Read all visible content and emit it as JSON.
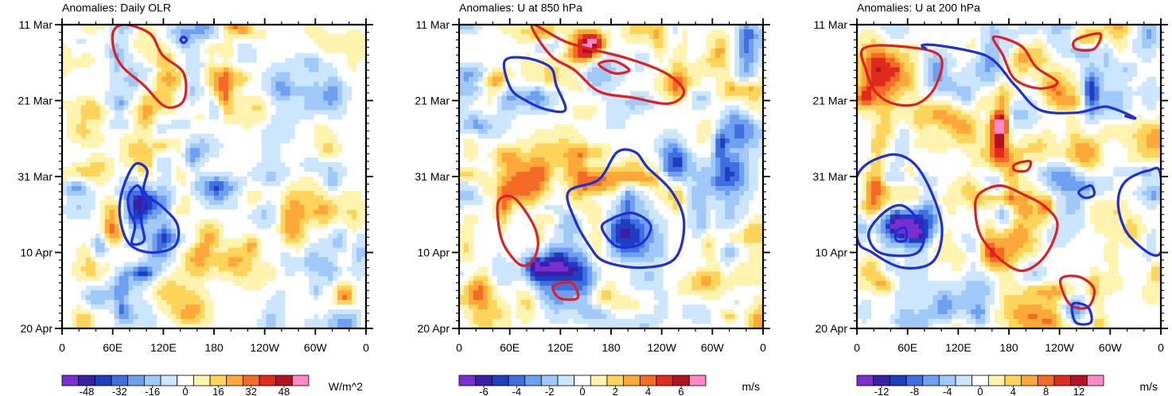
{
  "chart_data": [
    {
      "type": "heatmap",
      "title": "Anomalies: Daily OLR",
      "x_tick_labels": [
        "0",
        "60E",
        "120E",
        "180",
        "120W",
        "60W",
        "0"
      ],
      "x_range_deg_east": [
        0,
        360
      ],
      "y_tick_labels": [
        "11 Mar",
        "21 Mar",
        "31 Mar",
        "10 Apr",
        "20 Apr"
      ],
      "colorbar": {
        "unit": "W/m^2",
        "labels": [
          "-48",
          "-32",
          "-16",
          "0",
          "16",
          "32",
          "48"
        ],
        "levels": [
          -56,
          -48,
          -40,
          -32,
          -24,
          -16,
          -8,
          0,
          8,
          16,
          24,
          32,
          40,
          48,
          56
        ],
        "colors": [
          "#7b2fd0",
          "#3a1fa8",
          "#1f3fc0",
          "#3f6fe0",
          "#6fa0f0",
          "#a0c8f8",
          "#cce6ff",
          "#ffffff",
          "#fff3b0",
          "#ffd45a",
          "#ffa83a",
          "#f56a25",
          "#e02a1f",
          "#b5121f",
          "#ff88c8"
        ]
      },
      "contours": [
        {
          "color": "blue",
          "label": "negative anomaly region",
          "lon_center": 90,
          "day_center": 29
        },
        {
          "color": "red",
          "label": "positive anomaly region",
          "lon_center": 100,
          "day_center": 7
        }
      ]
    },
    {
      "type": "heatmap",
      "title": "Anomalies: U at 850 hPa",
      "x_tick_labels": [
        "0",
        "60E",
        "120E",
        "180",
        "120W",
        "60W",
        "0"
      ],
      "x_range_deg_east": [
        0,
        360
      ],
      "y_tick_labels": [
        "11 Mar",
        "21 Mar",
        "31 Mar",
        "10 Apr",
        "20 Apr"
      ],
      "colorbar": {
        "unit": "m/s",
        "labels": [
          "-6",
          "-4",
          "-2",
          "0",
          "2",
          "4",
          "6"
        ],
        "levels": [
          -7,
          -6,
          -5,
          -4,
          -3,
          -2,
          -1,
          0,
          1,
          2,
          3,
          4,
          5,
          6,
          7
        ],
        "colors": [
          "#7b2fd0",
          "#3a1fa8",
          "#1f3fc0",
          "#3f6fe0",
          "#6fa0f0",
          "#a0c8f8",
          "#cce6ff",
          "#ffffff",
          "#fff3b0",
          "#ffd45a",
          "#ffa83a",
          "#f56a25",
          "#e02a1f",
          "#b5121f",
          "#ff88c8"
        ]
      },
      "contours": [
        {
          "color": "blue",
          "label": "easterly anomaly region",
          "lon_center": 190,
          "day_center": 27
        },
        {
          "color": "red",
          "label": "westerly anomaly region",
          "lon_center": 170,
          "day_center": 6
        }
      ]
    },
    {
      "type": "heatmap",
      "title": "Anomalies: U at 200 hPa",
      "x_tick_labels": [
        "0",
        "60E",
        "120E",
        "180",
        "120W",
        "60W",
        "0"
      ],
      "x_range_deg_east": [
        0,
        360
      ],
      "y_tick_labels": [
        "11 Mar",
        "21 Mar",
        "31 Mar",
        "10 Apr",
        "20 Apr"
      ],
      "colorbar": {
        "unit": "m/s",
        "labels": [
          "-12",
          "-8",
          "-4",
          "0",
          "4",
          "8",
          "12"
        ],
        "levels": [
          -14,
          -12,
          -10,
          -8,
          -6,
          -4,
          -2,
          0,
          2,
          4,
          6,
          8,
          10,
          12,
          14
        ],
        "colors": [
          "#7b2fd0",
          "#3a1fa8",
          "#1f3fc0",
          "#3f6fe0",
          "#6fa0f0",
          "#a0c8f8",
          "#cce6ff",
          "#ffffff",
          "#fff3b0",
          "#ffd45a",
          "#ffa83a",
          "#f56a25",
          "#e02a1f",
          "#b5121f",
          "#ff88c8"
        ]
      },
      "contours": [
        {
          "color": "blue",
          "label": "easterly anomaly region",
          "lon_center": 50,
          "day_center": 29
        },
        {
          "color": "red",
          "label": "westerly anomaly region",
          "lon_center": 200,
          "day_center": 33
        }
      ]
    }
  ]
}
